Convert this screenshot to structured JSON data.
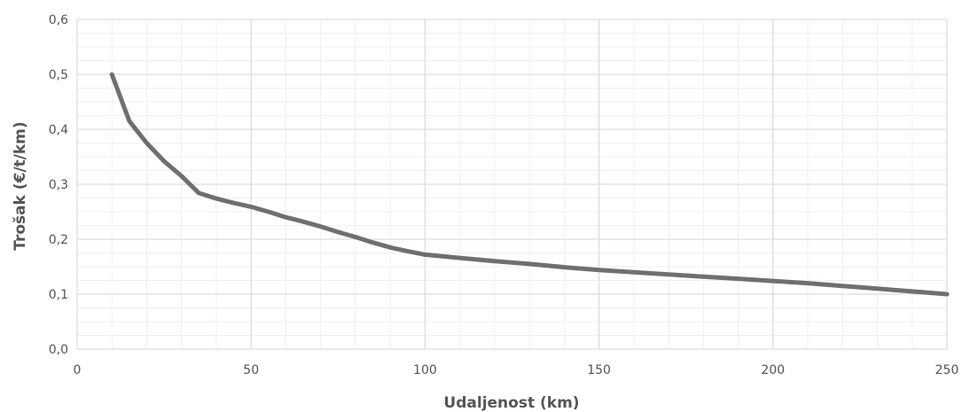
{
  "chart_data": {
    "type": "line",
    "title": "",
    "xlabel": "Udaljenost (km)",
    "ylabel": "Trošak (€/t/km)",
    "xlim": [
      0,
      250
    ],
    "ylim": [
      0,
      0.6
    ],
    "x_ticks": [
      "0",
      "50",
      "100",
      "150",
      "200",
      "250"
    ],
    "y_ticks": [
      "0,0",
      "0,1",
      "0,2",
      "0,3",
      "0,4",
      "0,5",
      "0,6"
    ],
    "grid": true,
    "legend": "none",
    "line_color": "#6f6f6f",
    "series": [
      {
        "x": [
          10,
          15,
          20,
          25,
          30,
          35,
          40,
          45,
          50,
          55,
          60,
          65,
          70,
          75,
          80,
          85,
          90,
          95,
          100,
          110,
          120,
          130,
          140,
          150,
          160,
          170,
          180,
          190,
          200,
          210,
          220,
          230,
          240,
          250
        ],
        "values": [
          0.5,
          0.415,
          0.375,
          0.342,
          0.315,
          0.284,
          0.274,
          0.266,
          0.259,
          0.25,
          0.24,
          0.232,
          0.223,
          0.213,
          0.204,
          0.194,
          0.185,
          0.178,
          0.172,
          0.166,
          0.16,
          0.155,
          0.149,
          0.144,
          0.14,
          0.136,
          0.132,
          0.128,
          0.124,
          0.12,
          0.115,
          0.11,
          0.105,
          0.1
        ]
      }
    ]
  }
}
